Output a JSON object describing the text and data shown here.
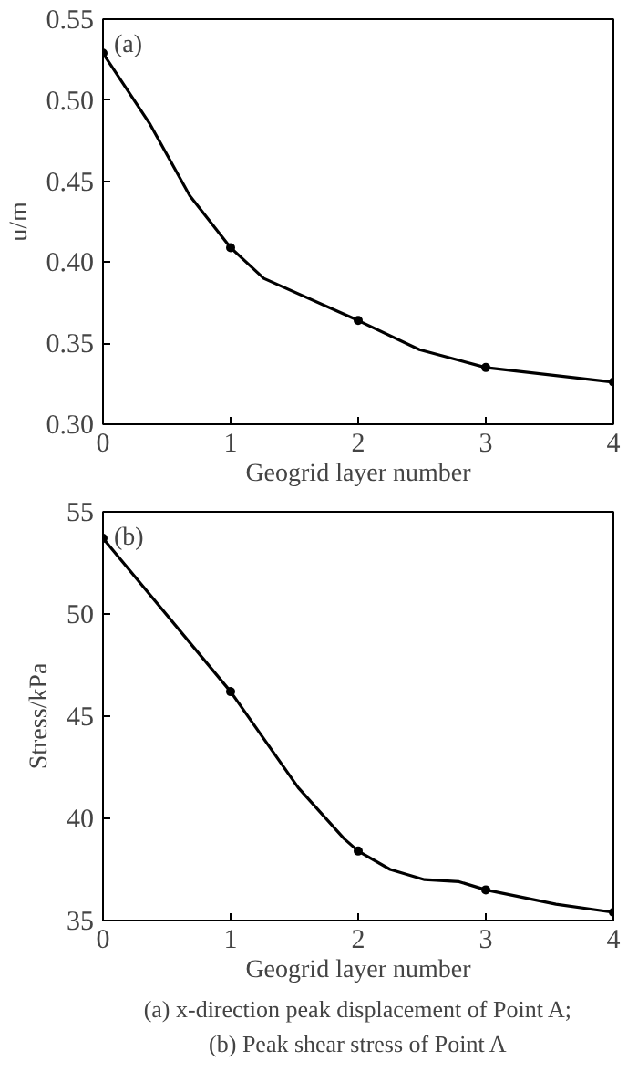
{
  "chart_data": [
    {
      "type": "line",
      "xlabel": "Geogrid layer number",
      "ylabel": "u/m",
      "xlim": [
        0,
        4
      ],
      "ylim": [
        0.3,
        0.55
      ],
      "xticks": [
        0,
        1,
        2,
        3,
        4
      ],
      "yticks": [
        {
          "value": 0.3,
          "label": "0.30"
        },
        {
          "value": 0.35,
          "label": "0.35"
        },
        {
          "value": 0.4,
          "label": "0.40"
        },
        {
          "value": 0.45,
          "label": "0.45"
        },
        {
          "value": 0.5,
          "label": "0.50"
        },
        {
          "value": 0.55,
          "label": "0.55"
        }
      ],
      "grid": false,
      "line_style": "solid",
      "annotations": [
        "(a)"
      ],
      "series": [
        {
          "color": "#000000",
          "marker": "none",
          "x": [
            0,
            0.37,
            0.68,
            1,
            1.26,
            2,
            2.48,
            3,
            4
          ],
          "values": [
            0.529,
            0.485,
            0.441,
            0.409,
            0.39,
            0.364,
            0.346,
            0.335,
            0.326
          ]
        },
        {
          "type": "scatter",
          "marker": "circle",
          "color": "#000000",
          "x": [
            0,
            1,
            2,
            3,
            4
          ],
          "values": [
            0.529,
            0.409,
            0.364,
            0.335,
            0.326
          ]
        }
      ]
    },
    {
      "type": "line",
      "xlabel": "Geogrid layer number",
      "ylabel": "Stress/kPa",
      "xlim": [
        0,
        4
      ],
      "ylim": [
        35,
        55
      ],
      "xticks": [
        0,
        1,
        2,
        3,
        4
      ],
      "yticks": [
        35,
        40,
        45,
        50,
        55
      ],
      "grid": false,
      "line_style": "solid",
      "annotations": [
        "(b)",
        "(a) x-direction peak displacement of Point A;",
        "(b) Peak shear stress of Point A"
      ],
      "series": [
        {
          "color": "#000000",
          "marker": "none",
          "x": [
            0,
            1,
            1.53,
            1.89,
            2,
            2.25,
            2.52,
            2.79,
            3,
            3.55,
            4
          ],
          "values": [
            53.7,
            46.2,
            41.5,
            39.0,
            38.4,
            37.5,
            37.0,
            36.9,
            36.5,
            35.8,
            35.4
          ]
        },
        {
          "type": "scatter",
          "marker": "circle",
          "color": "#000000",
          "x": [
            0,
            1,
            2,
            3,
            4
          ],
          "values": [
            53.7,
            46.2,
            38.4,
            36.5,
            35.4
          ]
        }
      ]
    }
  ]
}
